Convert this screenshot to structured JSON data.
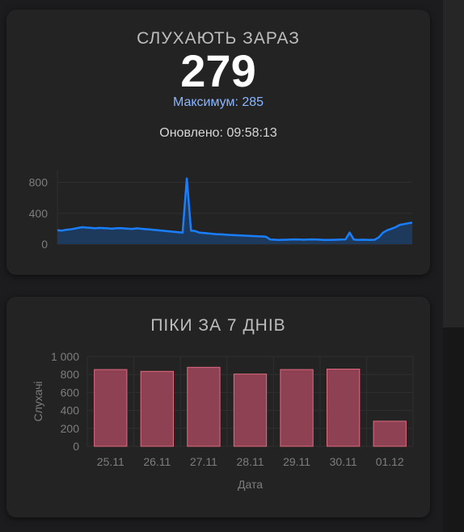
{
  "live": {
    "title": "СЛУХАЮТЬ ЗАРАЗ",
    "count": "279",
    "max_label": "Максимум:",
    "max_value": "285",
    "updated_label": "Оновлено:",
    "updated_time": "09:58:13"
  },
  "peaks": {
    "title": "ПІКИ ЗА 7 ДНІВ"
  },
  "colors": {
    "line": "#1a7fff",
    "line_fill": "#1d3a5c",
    "bar_fill": "#8e4152",
    "bar_stroke": "#e06a7f"
  },
  "chart_data": [
    {
      "type": "area",
      "title": "",
      "xlabel": "",
      "ylabel": "",
      "ylim": [
        0,
        900
      ],
      "yticks": [
        0,
        400,
        800
      ],
      "ytick_labels": [
        "0",
        "400",
        "800"
      ],
      "grid": true,
      "series": [
        {
          "values": [
            180,
            175,
            185,
            190,
            200,
            210,
            220,
            215,
            210,
            205,
            210,
            208,
            205,
            200,
            205,
            208,
            204,
            200,
            198,
            205,
            200,
            195,
            190,
            185,
            180,
            175,
            170,
            165,
            160,
            155,
            150,
            850,
            175,
            170,
            150,
            145,
            140,
            135,
            130,
            128,
            125,
            120,
            118,
            115,
            112,
            110,
            108,
            105,
            102,
            100,
            95,
            60,
            58,
            55,
            56,
            58,
            60,
            62,
            60,
            58,
            60,
            62,
            60,
            58,
            55,
            55,
            56,
            58,
            60,
            62,
            150,
            60,
            55,
            58,
            56,
            55,
            58,
            90,
            150,
            180,
            200,
            220,
            250,
            260,
            270,
            279
          ]
        }
      ]
    },
    {
      "type": "bar",
      "title": "",
      "xlabel": "Дата",
      "ylabel": "Слухачі",
      "ylim": [
        0,
        1000
      ],
      "yticks": [
        0,
        200,
        400,
        600,
        800,
        1000
      ],
      "ytick_labels": [
        "0",
        "200",
        "400",
        "600",
        "800",
        "1 000"
      ],
      "grid": true,
      "categories": [
        "25.11",
        "26.11",
        "27.11",
        "28.11",
        "29.11",
        "30.11",
        "01.12"
      ],
      "values": [
        855,
        835,
        880,
        805,
        855,
        860,
        280
      ]
    }
  ]
}
